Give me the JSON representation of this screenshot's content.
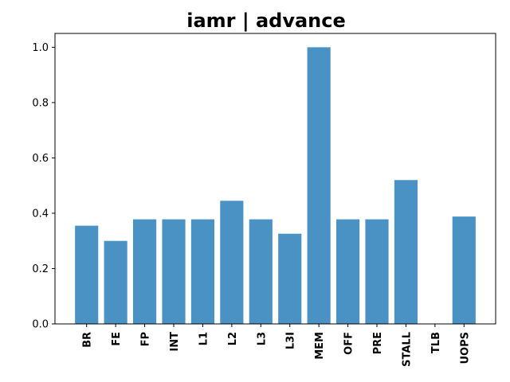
{
  "chart_data": {
    "type": "bar",
    "title": "iamr | advance",
    "xlabel": "",
    "ylabel": "",
    "categories": [
      "BR",
      "FE",
      "FP",
      "INT",
      "L1",
      "L2",
      "L3",
      "L3I",
      "MEM",
      "OFF",
      "PRE",
      "STALL",
      "TLB",
      "UOPS"
    ],
    "values": [
      0.355,
      0.3,
      0.378,
      0.378,
      0.378,
      0.445,
      0.378,
      0.326,
      1.0,
      0.378,
      0.378,
      0.52,
      0.0,
      0.388
    ],
    "ylim": [
      0,
      1.05
    ],
    "yticks": [
      0.0,
      0.2,
      0.4,
      0.6,
      0.8,
      1.0
    ],
    "ytick_labels": [
      "0.0",
      "0.2",
      "0.4",
      "0.6",
      "0.8",
      "1.0"
    ],
    "grid": false,
    "bar_color": "#4a91c4"
  }
}
